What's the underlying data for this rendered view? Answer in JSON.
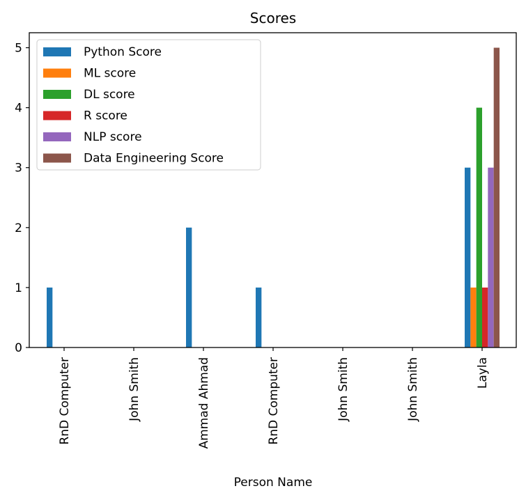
{
  "chart_data": {
    "type": "bar",
    "title": "Scores",
    "xlabel": "Person Name",
    "ylabel": "",
    "ylim": [
      0,
      5.25
    ],
    "yticks": [
      0,
      1,
      2,
      3,
      4,
      5
    ],
    "grid": false,
    "legend_position": "top-left",
    "categories": [
      "RnD Computer",
      "John Smith",
      "Ammad Ahmad",
      "RnD Computer",
      "John Smith",
      "John Smith",
      "Layla"
    ],
    "series": [
      {
        "name": "Python Score",
        "color": "#1f77b4",
        "values": [
          1,
          0,
          2,
          1,
          0,
          0,
          3
        ]
      },
      {
        "name": "ML score",
        "color": "#ff7f0e",
        "values": [
          0,
          0,
          0,
          0,
          0,
          0,
          1
        ]
      },
      {
        "name": "DL score",
        "color": "#2ca02c",
        "values": [
          0,
          0,
          0,
          0,
          0,
          0,
          4
        ]
      },
      {
        "name": "R score",
        "color": "#d62728",
        "values": [
          0,
          0,
          0,
          0,
          0,
          0,
          1
        ]
      },
      {
        "name": "NLP score",
        "color": "#9467bd",
        "values": [
          0,
          0,
          0,
          0,
          0,
          0,
          3
        ]
      },
      {
        "name": "Data Engineering Score",
        "color": "#8c564b",
        "values": [
          0,
          0,
          0,
          0,
          0,
          0,
          5
        ]
      }
    ]
  }
}
